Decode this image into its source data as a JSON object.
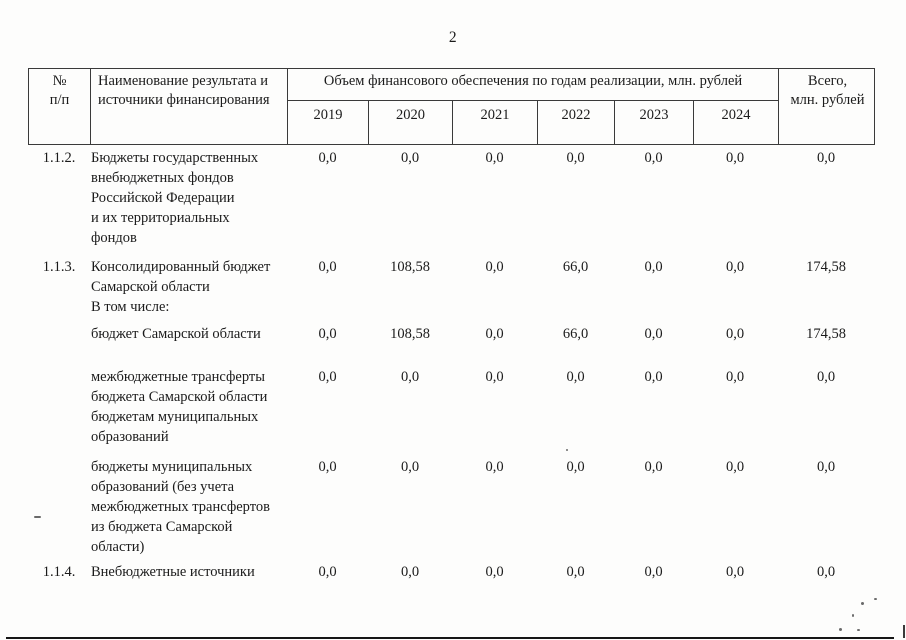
{
  "page": {
    "number": "2"
  },
  "table": {
    "headers": {
      "num_line1": "№",
      "num_line2": "п/п",
      "name_line1": "Наименование результата и",
      "name_line2": "источники финансирования",
      "volume": "Объем финансового обеспечения по годам реализации, млн. рублей",
      "years": [
        "2019",
        "2020",
        "2021",
        "2022",
        "2023",
        "2024"
      ],
      "total_line1": "Всего,",
      "total_line2": "млн. рублей"
    },
    "rows": [
      {
        "num": "1.1.2.",
        "name_lines": [
          "Бюджеты государственных",
          "внебюджетных фондов",
          "Российской Федерации",
          "и их территориальных",
          "фондов"
        ],
        "values": [
          "0,0",
          "0,0",
          "0,0",
          "0,0",
          "0,0",
          "0,0"
        ],
        "total": "0,0"
      },
      {
        "num": "1.1.3.",
        "name_lines": [
          "Консолидированный бюджет",
          "Самарской области",
          "В том числе:"
        ],
        "values": [
          "0,0",
          "108,58",
          "0,0",
          "66,0",
          "0,0",
          "0,0"
        ],
        "total": "174,58"
      },
      {
        "num": "",
        "name_lines": [
          "бюджет Самарской области"
        ],
        "values": [
          "0,0",
          "108,58",
          "0,0",
          "66,0",
          "0,0",
          "0,0"
        ],
        "total": "174,58"
      },
      {
        "num": "",
        "name_lines": [
          "межбюджетные трансферты",
          "бюджета Самарской области",
          "бюджетам муниципальных",
          "образований"
        ],
        "values": [
          "0,0",
          "0,0",
          "0,0",
          "0,0",
          "0,0",
          "0,0"
        ],
        "total": "0,0"
      },
      {
        "num": "",
        "name_lines": [
          "бюджеты муниципальных",
          "образований (без учета",
          "межбюджетных трансфертов",
          "из бюджета Самарской",
          "области)"
        ],
        "values": [
          "0,0",
          "0,0",
          "0,0",
          "0,0",
          "0,0",
          "0,0"
        ],
        "total": "0,0"
      },
      {
        "num": "1.1.4.",
        "name_lines": [
          "Внебюджетные источники"
        ],
        "values": [
          "0,0",
          "0,0",
          "0,0",
          "0,0",
          "0,0",
          "0,0"
        ],
        "total": "0,0"
      }
    ]
  }
}
